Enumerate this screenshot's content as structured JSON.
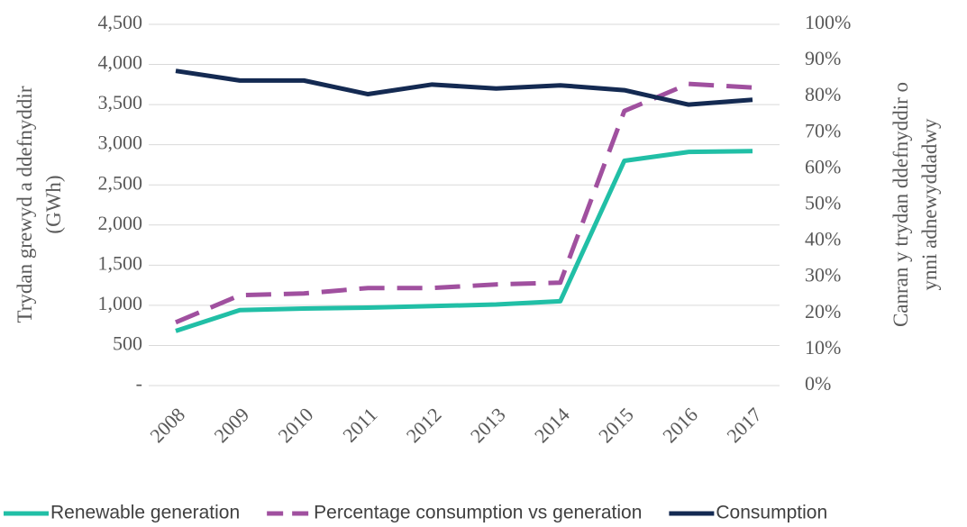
{
  "chart_data": {
    "type": "line",
    "categories": [
      "2008",
      "2009",
      "2010",
      "2011",
      "2012",
      "2013",
      "2014",
      "2015",
      "2016",
      "2017"
    ],
    "series": [
      {
        "name": "Renewable generation",
        "color": "#21bfa6",
        "values": [
          680,
          940,
          960,
          970,
          990,
          1010,
          1050,
          2800,
          2910,
          2920
        ]
      },
      {
        "name": "Percentage consumption vs generation",
        "color": "#a0509f",
        "axis": "y2",
        "dashed": true,
        "values": [
          17.5,
          25,
          25.5,
          27,
          27,
          28,
          28.5,
          76,
          83.5,
          82.5
        ]
      },
      {
        "name": "Consumption",
        "color": "#142a52",
        "values": [
          3920,
          3800,
          3800,
          3630,
          3750,
          3700,
          3740,
          3680,
          3500,
          3560
        ]
      }
    ],
    "y_label": [
      "Trydan grewyd a ddefnyddir",
      "(GWh)"
    ],
    "y2_label": [
      "Canran y trydan ddefnyddir o",
      "ynni adnewyddadwy"
    ],
    "ylim": [
      0,
      4500
    ],
    "yticks": [
      {
        "value": 0,
        "label": "-"
      },
      500,
      {
        "value": 1000,
        "label": "1,000"
      },
      {
        "value": 1500,
        "label": "1,500"
      },
      {
        "value": 2000,
        "label": "2,000"
      },
      {
        "value": 2500,
        "label": "2,500"
      },
      {
        "value": 3000,
        "label": "3,000"
      },
      {
        "value": 3500,
        "label": "3,500"
      },
      {
        "value": 4000,
        "label": "4,000"
      },
      {
        "value": 4500,
        "label": "4,500"
      }
    ],
    "y2lim": [
      0,
      100
    ],
    "y2ticks": [
      {
        "value": 0,
        "label": "0%"
      },
      {
        "value": 10,
        "label": "10%"
      },
      {
        "value": 20,
        "label": "20%"
      },
      {
        "value": 30,
        "label": "30%"
      },
      {
        "value": 40,
        "label": "40%"
      },
      {
        "value": 50,
        "label": "50%"
      },
      {
        "value": 60,
        "label": "60%"
      },
      {
        "value": 70,
        "label": "70%"
      },
      {
        "value": 80,
        "label": "80%"
      },
      {
        "value": 90,
        "label": "90%"
      },
      {
        "value": 100,
        "label": "100%"
      }
    ],
    "grid": true,
    "legend": "bottom"
  }
}
